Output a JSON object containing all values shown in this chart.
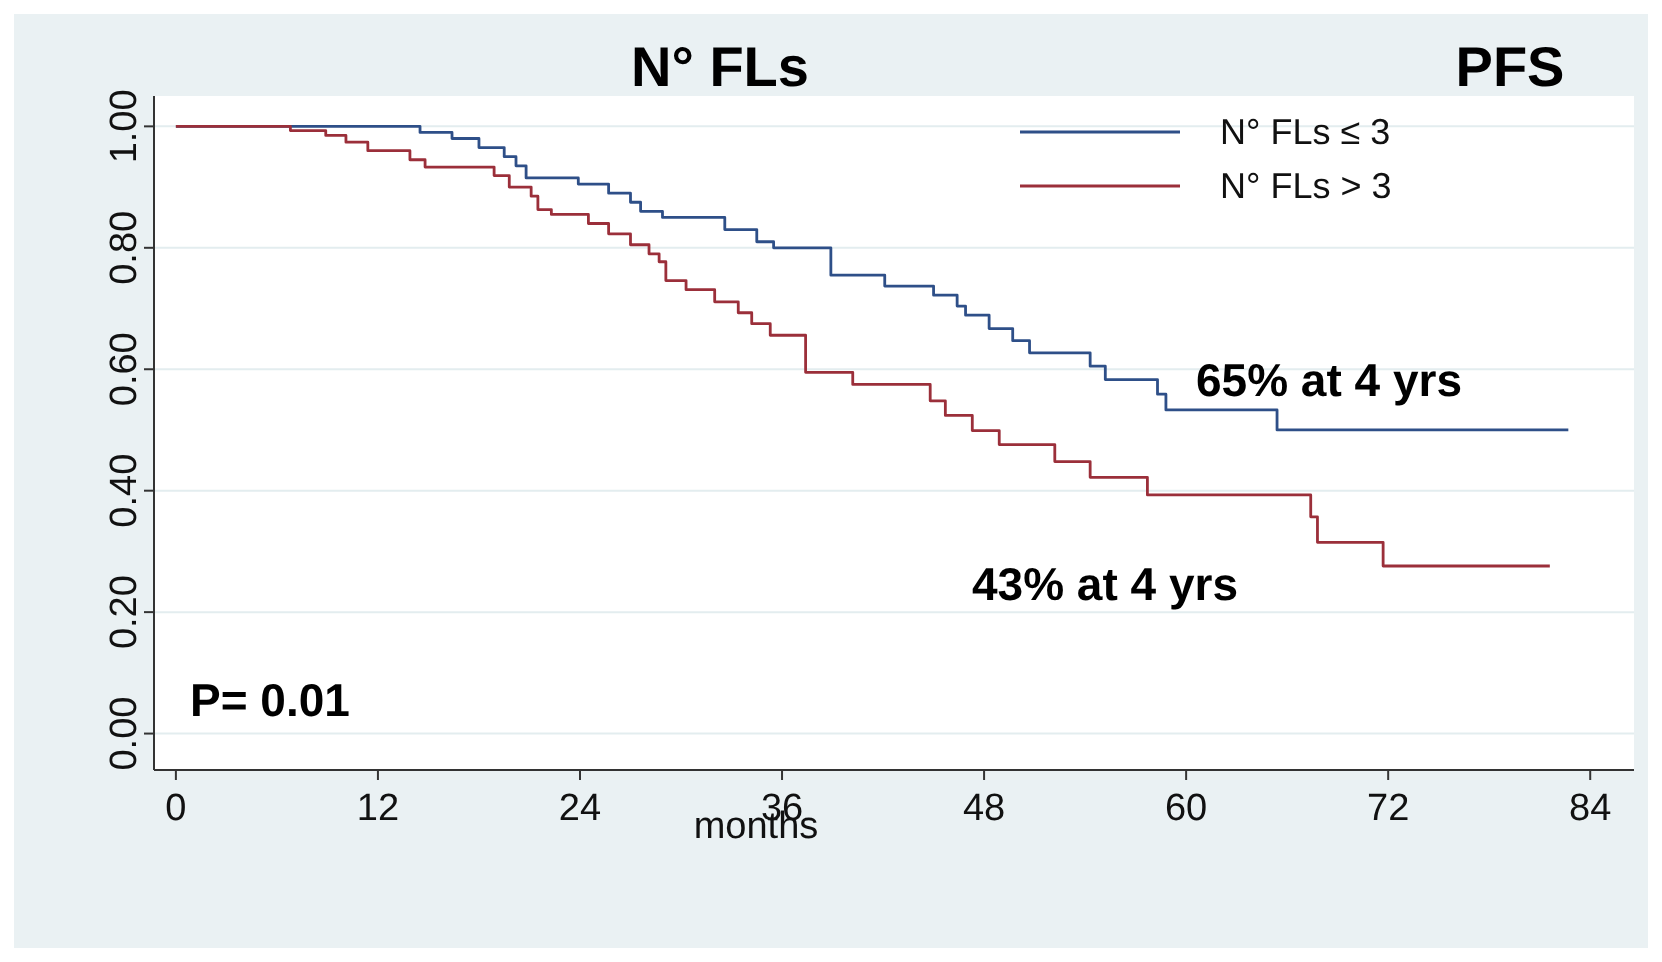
{
  "chart_data": {
    "type": "step",
    "title": "N° FLs",
    "subtitle": "PFS",
    "xlabel": "months",
    "xlim": [
      -1.3,
      86.6
    ],
    "xticks": [
      0,
      12,
      24,
      36,
      48,
      60,
      72,
      84
    ],
    "ylim": [
      -0.06,
      1.05
    ],
    "yticks": [
      {
        "value": 0,
        "label": "0.00"
      },
      {
        "value": 0.2,
        "label": "0.20"
      },
      {
        "value": 0.4,
        "label": "0.40"
      },
      {
        "value": 0.6,
        "label": "0.60"
      },
      {
        "value": 0.8,
        "label": "0.80"
      },
      {
        "value": 1,
        "label": "1.00"
      }
    ],
    "grid": "y",
    "legend": "top right",
    "marker": "none",
    "line_style": "solid",
    "series": [
      {
        "name": "N° FLs ≤ 3",
        "color": "#2e4f88",
        "x": [
          0,
          14.5,
          16.4,
          18,
          19.5,
          20.2,
          20.8,
          23.9,
          25.7,
          27,
          27.6,
          28.9,
          32.6,
          34.5,
          35.5,
          38.9,
          42.1,
          45,
          46.4,
          46.9,
          48.3,
          49.7,
          50.7,
          54.3,
          55.2,
          58.3,
          58.8,
          65.4,
          82.7
        ],
        "values": [
          1,
          0.99,
          0.98,
          0.965,
          0.95,
          0.935,
          0.915,
          0.905,
          0.89,
          0.875,
          0.86,
          0.85,
          0.83,
          0.81,
          0.8,
          0.755,
          0.737,
          0.722,
          0.704,
          0.689,
          0.667,
          0.647,
          0.627,
          0.605,
          0.583,
          0.559,
          0.533,
          0.5,
          0.5
        ]
      },
      {
        "name": "N° FLs > 3",
        "color": "#9b2f3a",
        "x": [
          0,
          6.8,
          8.9,
          10.1,
          11.4,
          13.9,
          14.8,
          18.9,
          19.8,
          21.1,
          21.5,
          22.3,
          24.5,
          25.7,
          27,
          28.1,
          28.7,
          29.1,
          30.3,
          32,
          33.4,
          34.2,
          35.3,
          37.4,
          40.2,
          44.8,
          45.7,
          47.3,
          48.9,
          52.2,
          54.3,
          57.7,
          67.4,
          67.8,
          71.7,
          81.6
        ],
        "values": [
          1,
          0.993,
          0.985,
          0.974,
          0.96,
          0.945,
          0.933,
          0.919,
          0.9,
          0.885,
          0.863,
          0.855,
          0.84,
          0.823,
          0.805,
          0.79,
          0.777,
          0.746,
          0.731,
          0.711,
          0.693,
          0.675,
          0.656,
          0.595,
          0.575,
          0.548,
          0.524,
          0.499,
          0.476,
          0.448,
          0.422,
          0.393,
          0.357,
          0.315,
          0.276,
          0.276
        ]
      }
    ],
    "annotations": [
      "65% at 4 yrs",
      "43% at 4 yrs",
      "P= 0.01"
    ]
  }
}
